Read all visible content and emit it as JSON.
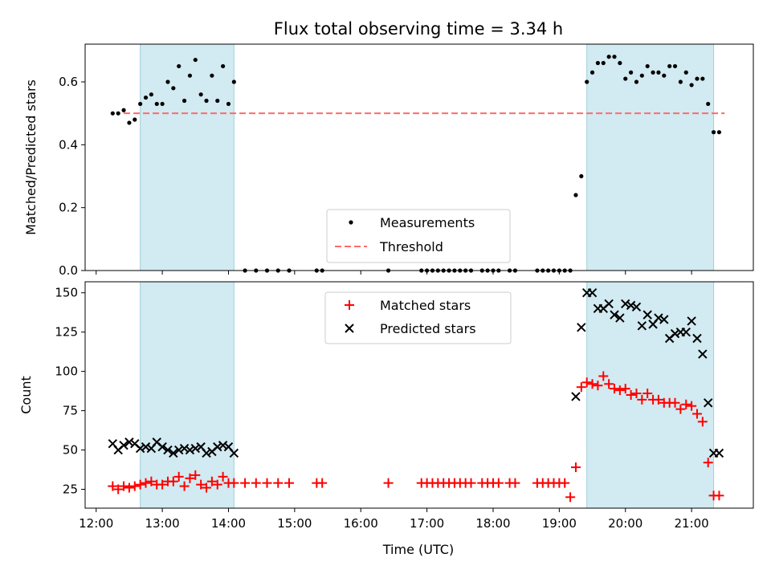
{
  "chart_data": {
    "title": "Flux total observing time = 3.34 h",
    "xlabel": "Time (UTC)",
    "x_ticks": [
      "12:00",
      "13:00",
      "14:00",
      "15:00",
      "16:00",
      "17:00",
      "18:00",
      "19:00",
      "20:00",
      "21:00"
    ],
    "x_range": [
      "11:50",
      "21:56"
    ],
    "shaded_intervals": [
      [
        "12:40",
        "14:05"
      ],
      [
        "19:25",
        "21:20"
      ]
    ],
    "colors": {
      "shade": "#add8e6",
      "measurements": "#000000",
      "threshold": "#ff6b6b",
      "matched": "#ff0000",
      "predicted": "#000000"
    },
    "panels": [
      {
        "type": "scatter",
        "ylabel": "Matched/Predicted stars",
        "ylim": [
          0,
          0.72
        ],
        "y_ticks": [
          0.0,
          0.2,
          0.4,
          0.6
        ],
        "legend_position": "lower-center",
        "threshold": {
          "name": "Threshold",
          "value": 0.5,
          "x_range": [
            "12:25",
            "21:30"
          ]
        },
        "series": [
          {
            "name": "Measurements",
            "marker": "dot",
            "x": [
              "12:15",
              "12:20",
              "12:25",
              "12:30",
              "12:35",
              "12:40",
              "12:45",
              "12:50",
              "12:55",
              "13:00",
              "13:05",
              "13:10",
              "13:15",
              "13:20",
              "13:25",
              "13:30",
              "13:35",
              "13:40",
              "13:45",
              "13:50",
              "13:55",
              "14:00",
              "14:05",
              "14:15",
              "14:25",
              "14:35",
              "14:45",
              "14:55",
              "15:20",
              "15:25",
              "16:25",
              "16:55",
              "17:00",
              "17:05",
              "17:10",
              "17:15",
              "17:20",
              "17:25",
              "17:30",
              "17:35",
              "17:40",
              "17:50",
              "17:55",
              "18:00",
              "18:05",
              "18:15",
              "18:20",
              "18:40",
              "18:45",
              "18:50",
              "18:55",
              "19:00",
              "19:05",
              "19:10",
              "19:15",
              "19:20",
              "19:25",
              "19:30",
              "19:35",
              "19:40",
              "19:45",
              "19:50",
              "19:55",
              "20:00",
              "20:05",
              "20:10",
              "20:15",
              "20:20",
              "20:25",
              "20:30",
              "20:35",
              "20:40",
              "20:45",
              "20:50",
              "20:55",
              "21:00",
              "21:05",
              "21:10",
              "21:15",
              "21:20",
              "21:25"
            ],
            "y": [
              0.5,
              0.5,
              0.51,
              0.47,
              0.48,
              0.53,
              0.55,
              0.56,
              0.53,
              0.53,
              0.6,
              0.58,
              0.65,
              0.54,
              0.62,
              0.67,
              0.56,
              0.54,
              0.62,
              0.54,
              0.65,
              0.53,
              0.6,
              0.0,
              0.0,
              0.0,
              0.0,
              0.0,
              0.0,
              0.0,
              0.0,
              0.0,
              0.0,
              0.0,
              0.0,
              0.0,
              0.0,
              0.0,
              0.0,
              0.0,
              0.0,
              0.0,
              0.0,
              0.0,
              0.0,
              0.0,
              0.0,
              0.0,
              0.0,
              0.0,
              0.0,
              0.0,
              0.0,
              0.0,
              0.24,
              0.3,
              0.6,
              0.63,
              0.66,
              0.66,
              0.68,
              0.68,
              0.66,
              0.61,
              0.63,
              0.6,
              0.62,
              0.65,
              0.63,
              0.63,
              0.62,
              0.65,
              0.65,
              0.6,
              0.63,
              0.59,
              0.61,
              0.61,
              0.53,
              0.44,
              0.44
            ]
          }
        ]
      },
      {
        "type": "scatter",
        "ylabel": "Count",
        "ylim": [
          13,
          157
        ],
        "y_ticks": [
          25,
          50,
          75,
          100,
          125,
          150
        ],
        "legend_position": "upper-center",
        "series": [
          {
            "name": "Matched stars",
            "marker": "plus",
            "x": [
              "12:15",
              "12:20",
              "12:25",
              "12:30",
              "12:35",
              "12:40",
              "12:45",
              "12:50",
              "12:55",
              "13:00",
              "13:05",
              "13:10",
              "13:15",
              "13:20",
              "13:25",
              "13:30",
              "13:35",
              "13:40",
              "13:45",
              "13:50",
              "13:55",
              "14:00",
              "14:05",
              "14:15",
              "14:25",
              "14:35",
              "14:45",
              "14:55",
              "15:20",
              "15:25",
              "16:25",
              "16:55",
              "17:00",
              "17:05",
              "17:10",
              "17:15",
              "17:20",
              "17:25",
              "17:30",
              "17:35",
              "17:40",
              "17:50",
              "17:55",
              "18:00",
              "18:05",
              "18:15",
              "18:20",
              "18:40",
              "18:45",
              "18:50",
              "18:55",
              "19:00",
              "19:05",
              "19:10",
              "19:15",
              "19:20",
              "19:25",
              "19:30",
              "19:35",
              "19:40",
              "19:45",
              "19:50",
              "19:55",
              "20:00",
              "20:05",
              "20:10",
              "20:15",
              "20:20",
              "20:25",
              "20:30",
              "20:35",
              "20:40",
              "20:45",
              "20:50",
              "20:55",
              "21:00",
              "21:05",
              "21:10",
              "21:15",
              "21:20",
              "21:25"
            ],
            "y": [
              27,
              25,
              27,
              26,
              27,
              28,
              29,
              30,
              28,
              28,
              30,
              30,
              33,
              27,
              32,
              34,
              28,
              26,
              30,
              28,
              33,
              29,
              29,
              29,
              29,
              29,
              29,
              29,
              29,
              29,
              29,
              29,
              29,
              29,
              29,
              29,
              29,
              29,
              29,
              29,
              29,
              29,
              29,
              29,
              29,
              29,
              29,
              29,
              29,
              29,
              29,
              29,
              29,
              20,
              39,
              90,
              93,
              92,
              91,
              97,
              92,
              89,
              88,
              89,
              85,
              86,
              82,
              86,
              82,
              82,
              80,
              80,
              80,
              76,
              79,
              78,
              73,
              68,
              42,
              21,
              21
            ]
          },
          {
            "name": "Predicted stars",
            "marker": "x",
            "x": [
              "12:15",
              "12:20",
              "12:25",
              "12:30",
              "12:35",
              "12:40",
              "12:45",
              "12:50",
              "12:55",
              "13:00",
              "13:05",
              "13:10",
              "13:15",
              "13:20",
              "13:25",
              "13:30",
              "13:35",
              "13:40",
              "13:45",
              "13:50",
              "13:55",
              "14:00",
              "14:05",
              "19:15",
              "19:20",
              "19:25",
              "19:30",
              "19:35",
              "19:40",
              "19:45",
              "19:50",
              "19:55",
              "20:00",
              "20:05",
              "20:10",
              "20:15",
              "20:20",
              "20:25",
              "20:30",
              "20:35",
              "20:40",
              "20:45",
              "20:50",
              "20:55",
              "21:00",
              "21:05",
              "21:10",
              "21:15",
              "21:20",
              "21:25"
            ],
            "y": [
              54,
              50,
              53,
              55,
              54,
              51,
              52,
              51,
              55,
              52,
              50,
              48,
              50,
              51,
              50,
              51,
              52,
              48,
              49,
              52,
              53,
              52,
              48,
              84,
              128,
              150,
              150,
              140,
              140,
              143,
              136,
              134,
              143,
              142,
              141,
              129,
              136,
              130,
              134,
              133,
              121,
              124,
              125,
              125,
              132,
              121,
              111,
              80,
              48,
              48
            ]
          }
        ]
      }
    ]
  }
}
